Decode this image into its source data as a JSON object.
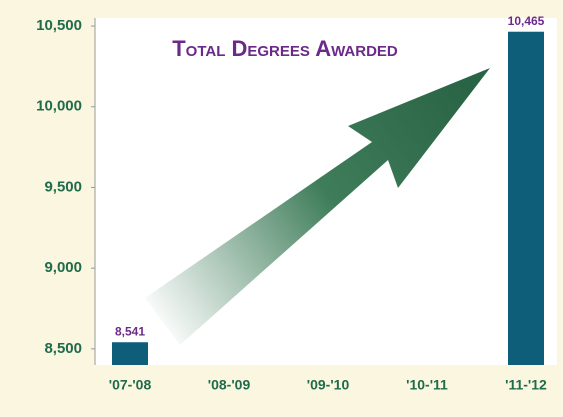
{
  "chart_data": {
    "type": "bar",
    "title": "Total Degrees Awarded",
    "categories": [
      "'07-'08",
      "'08-'09",
      "'09-'10",
      "'10-'11",
      "'11-'12"
    ],
    "values": [
      8541,
      null,
      null,
      null,
      10465
    ],
    "value_labels": [
      "8,541",
      null,
      null,
      null,
      "10,465"
    ],
    "color": "#0e5e7a",
    "ylim": [
      8400,
      10550
    ],
    "yticks": [
      {
        "value": 8500,
        "label": "8,500"
      },
      {
        "value": 9000,
        "label": "9,000"
      },
      {
        "value": 9500,
        "label": "9,500"
      },
      {
        "value": 10000,
        "label": "10,000"
      },
      {
        "value": 10500,
        "label": "10,500"
      }
    ],
    "grid": false
  }
}
